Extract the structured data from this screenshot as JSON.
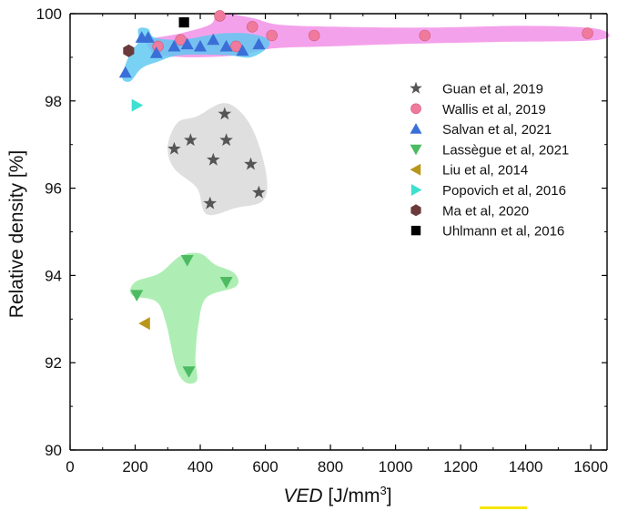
{
  "chart_data": {
    "type": "scatter",
    "title": "",
    "xlabel_italic": "VED",
    "xlabel_units": " [J/mm",
    "xlabel_sup": "3",
    "xlabel_close": "]",
    "ylabel": "Relative density [%]",
    "xlim": [
      0,
      1650
    ],
    "ylim": [
      90,
      100
    ],
    "xticks": [
      0,
      200,
      400,
      600,
      800,
      1000,
      1200,
      1400,
      1600
    ],
    "yticks": [
      90,
      92,
      94,
      96,
      98,
      100
    ],
    "legend_position": "right-upper",
    "series": [
      {
        "name": "Guan et al, 2019",
        "marker": "star",
        "color": "#555555",
        "points": [
          [
            320,
            96.9
          ],
          [
            370,
            97.1
          ],
          [
            440,
            96.65
          ],
          [
            430,
            95.65
          ],
          [
            475,
            97.7
          ],
          [
            480,
            97.1
          ],
          [
            555,
            96.55
          ],
          [
            580,
            95.9
          ]
        ]
      },
      {
        "name": "Wallis et al, 2019",
        "marker": "circle",
        "color": "#f07a9c",
        "points": [
          [
            270,
            99.25
          ],
          [
            340,
            99.4
          ],
          [
            460,
            99.95
          ],
          [
            510,
            99.25
          ],
          [
            560,
            99.7
          ],
          [
            620,
            99.5
          ],
          [
            750,
            99.5
          ],
          [
            1090,
            99.5
          ],
          [
            1590,
            99.55
          ]
        ]
      },
      {
        "name": "Salvan et al, 2021",
        "marker": "triangle-up",
        "color": "#3a6fd8",
        "points": [
          [
            170,
            98.65
          ],
          [
            220,
            99.45
          ],
          [
            240,
            99.45
          ],
          [
            265,
            99.1
          ],
          [
            320,
            99.25
          ],
          [
            360,
            99.3
          ],
          [
            400,
            99.25
          ],
          [
            440,
            99.4
          ],
          [
            480,
            99.25
          ],
          [
            530,
            99.15
          ],
          [
            580,
            99.3
          ]
        ]
      },
      {
        "name": "Lassègue et al, 2021",
        "marker": "triangle-down",
        "color": "#4dbb62",
        "points": [
          [
            205,
            93.55
          ],
          [
            360,
            94.35
          ],
          [
            480,
            93.85
          ],
          [
            365,
            91.8
          ]
        ]
      },
      {
        "name": "Liu et al, 2014",
        "marker": "triangle-left",
        "color": "#b8961a",
        "points": [
          [
            230,
            92.9
          ]
        ]
      },
      {
        "name": "Popovich et al, 2016",
        "marker": "triangle-right",
        "color": "#3fe0d2",
        "points": [
          [
            205,
            97.9
          ]
        ]
      },
      {
        "name": "Ma et al, 2020",
        "marker": "hexagon",
        "color": "#6b3a3a",
        "points": [
          [
            180,
            99.15
          ]
        ]
      },
      {
        "name": "Uhlmann et al, 2016",
        "marker": "square",
        "color": "#000000",
        "points": [
          [
            350,
            99.8
          ]
        ]
      }
    ],
    "regions": [
      {
        "name": "Guan et al, 2019",
        "color": "#d8d8d8",
        "outline": [
          [
            330,
            97.5
          ],
          [
            390,
            97.65
          ],
          [
            470,
            97.95
          ],
          [
            530,
            97.7
          ],
          [
            575,
            97.1
          ],
          [
            605,
            96.2
          ],
          [
            590,
            95.7
          ],
          [
            510,
            95.55
          ],
          [
            420,
            95.4
          ],
          [
            390,
            96.0
          ],
          [
            320,
            96.45
          ],
          [
            300,
            96.95
          ]
        ]
      },
      {
        "name": "Wallis et al, 2019",
        "color": "#f28ce6",
        "outline": [
          [
            240,
            99.4
          ],
          [
            340,
            99.55
          ],
          [
            430,
            99.75
          ],
          [
            460,
            100.0
          ],
          [
            560,
            99.9
          ],
          [
            640,
            99.75
          ],
          [
            820,
            99.7
          ],
          [
            1100,
            99.68
          ],
          [
            1400,
            99.72
          ],
          [
            1620,
            99.65
          ],
          [
            1625,
            99.4
          ],
          [
            1300,
            99.35
          ],
          [
            1000,
            99.3
          ],
          [
            800,
            99.25
          ],
          [
            620,
            99.2
          ],
          [
            520,
            99.05
          ],
          [
            380,
            99.0
          ],
          [
            270,
            99.05
          ],
          [
            245,
            99.2
          ]
        ]
      },
      {
        "name": "Salvan et al, 2021",
        "color": "#5bc8f0",
        "outline": [
          [
            160,
            98.55
          ],
          [
            185,
            99.1
          ],
          [
            210,
            99.35
          ],
          [
            210,
            99.65
          ],
          [
            240,
            99.65
          ],
          [
            260,
            99.45
          ],
          [
            340,
            99.4
          ],
          [
            420,
            99.5
          ],
          [
            470,
            99.55
          ],
          [
            540,
            99.55
          ],
          [
            600,
            99.45
          ],
          [
            610,
            99.25
          ],
          [
            555,
            99.0
          ],
          [
            480,
            99.05
          ],
          [
            340,
            99.05
          ],
          [
            270,
            98.9
          ],
          [
            220,
            98.75
          ],
          [
            185,
            98.45
          ]
        ]
      },
      {
        "name": "Lassègue et al, 2021",
        "color": "#9ceaa3",
        "outline": [
          [
            190,
            93.55
          ],
          [
            200,
            93.85
          ],
          [
            275,
            94.05
          ],
          [
            340,
            94.45
          ],
          [
            400,
            94.5
          ],
          [
            445,
            94.25
          ],
          [
            505,
            94.05
          ],
          [
            510,
            93.75
          ],
          [
            420,
            93.5
          ],
          [
            395,
            92.9
          ],
          [
            385,
            92.1
          ],
          [
            390,
            91.6
          ],
          [
            355,
            91.55
          ],
          [
            325,
            91.9
          ],
          [
            295,
            92.9
          ],
          [
            265,
            93.4
          ]
        ]
      }
    ]
  }
}
